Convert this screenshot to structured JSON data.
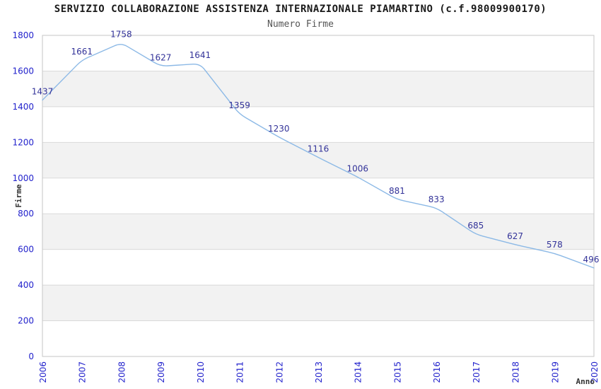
{
  "chart_data": {
    "type": "line",
    "title": "SERVIZIO COLLABORAZIONE ASSISTENZA INTERNAZIONALE PIAMARTINO (c.f.98009900170)",
    "subtitle": "Numero Firme",
    "xlabel": "Anno",
    "ylabel": "Firme",
    "categories": [
      "2006",
      "2007",
      "2008",
      "2009",
      "2010",
      "2011",
      "2012",
      "2013",
      "2014",
      "2015",
      "2016",
      "2017",
      "2018",
      "2019",
      "2020"
    ],
    "series": [
      {
        "name": "Numero Firme",
        "values": [
          1437,
          1661,
          1758,
          1627,
          1641,
          1359,
          1230,
          1116,
          1006,
          881,
          833,
          685,
          627,
          578,
          496
        ]
      }
    ],
    "data_labels": [
      1437,
      1661,
      1758,
      1627,
      1641,
      1359,
      1230,
      1116,
      1006,
      881,
      833,
      685,
      627,
      578,
      496
    ],
    "ylim": [
      0,
      1800
    ],
    "ytick_step": 200,
    "yticks": [
      0,
      200,
      400,
      600,
      800,
      1000,
      1200,
      1400,
      1600,
      1800
    ],
    "grid": true,
    "alternating_bands": true,
    "legend_position": "none",
    "colors": {
      "line": "#8cb9e6",
      "data_label": "#333399",
      "tick_label": "#2222cc",
      "title": "#1a1a1a",
      "subtitle": "#555555",
      "axis_title": "#333333",
      "gridline": "#d9d9d9",
      "band": "#f2f2f2",
      "plot_border": "#c6c6c6",
      "background": "#ffffff"
    }
  }
}
